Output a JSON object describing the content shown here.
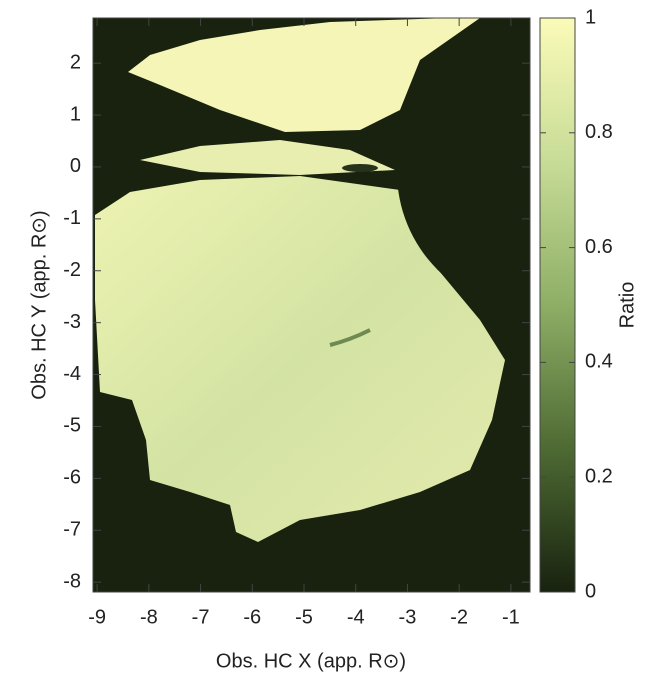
{
  "chart_data": {
    "type": "heatmap",
    "x_label": "Obs. HC X (app. R⊙)",
    "y_label": "Obs. HC Y (app. R⊙)",
    "colorbar_label": "Ratio",
    "xlim": [
      -9.08,
      -0.63
    ],
    "xticks": [
      -9,
      -8,
      -7,
      -6,
      -5,
      -4,
      -3,
      -2,
      -1
    ],
    "ylim": [
      -8.19,
      2.87
    ],
    "yticks": [
      -8,
      -7,
      -6,
      -5,
      -4,
      -3,
      -2,
      -1,
      0,
      1,
      2
    ],
    "clim": [
      0,
      1
    ],
    "cticks": [
      0,
      0.2,
      0.4,
      0.6,
      0.8,
      1
    ],
    "colormap": [
      "#18220f",
      "#4e6a33",
      "#8eae66",
      "#c7dc97",
      "#fbfbb8"
    ]
  }
}
